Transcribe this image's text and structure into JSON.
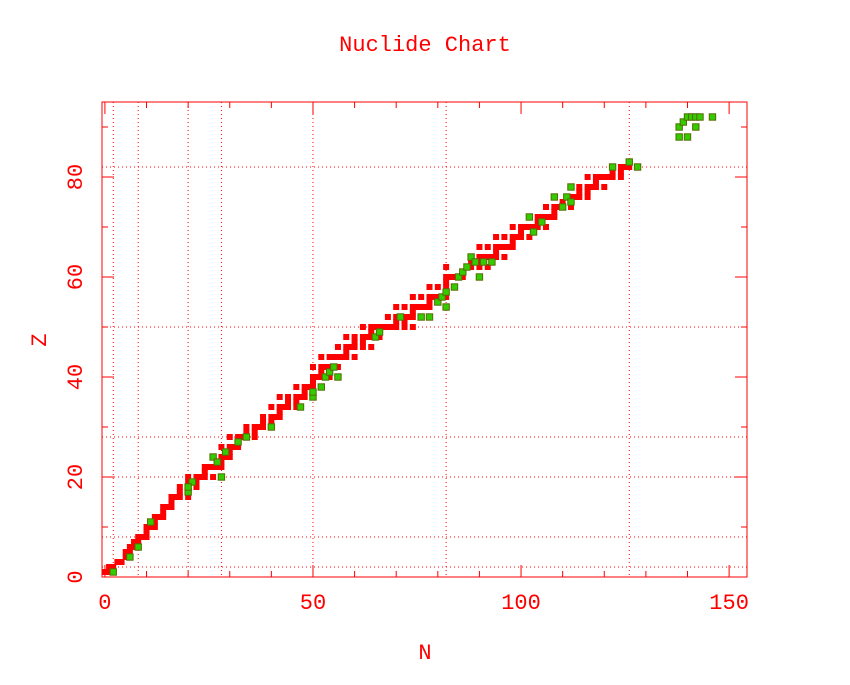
{
  "chart_data": {
    "type": "scatter",
    "title": "Nuclide Chart",
    "x_label": "N",
    "y_label": "Z",
    "xlim": [
      -0.7,
      154.3
    ],
    "ylim": [
      0,
      95
    ],
    "xticks": [
      0,
      50,
      100,
      150
    ],
    "yticks": [
      0,
      20,
      40,
      60,
      80
    ],
    "xminorticks": [
      10,
      20,
      30,
      40,
      60,
      70,
      80,
      90,
      110,
      120,
      130,
      140
    ],
    "yminorticks": [
      10,
      30,
      50,
      70,
      90
    ],
    "xgrid": [
      2,
      8,
      20,
      28,
      50,
      82,
      126
    ],
    "ygrid": [
      2,
      8,
      20,
      28,
      50,
      82
    ],
    "axis_color": "#ff0000",
    "series": [
      {
        "color": "#ff0000",
        "x": [
          0,
          1,
          1,
          2,
          3,
          4,
          5,
          5,
          6,
          6,
          7,
          7,
          8,
          8,
          9,
          10,
          10,
          10,
          11,
          12,
          12,
          12,
          13,
          14,
          14,
          14,
          15,
          16,
          16,
          16,
          17,
          18,
          20,
          18,
          20,
          18,
          20,
          22,
          20,
          22,
          20,
          22,
          23,
          24,
          26,
          24,
          24,
          25,
          26,
          27,
          28,
          28,
          26,
          28,
          29,
          30,
          30,
          28,
          30,
          31,
          32,
          32,
          30,
          32,
          33,
          34,
          36,
          34,
          36,
          34,
          36,
          37,
          38,
          40,
          38,
          40,
          38,
          40,
          41,
          42,
          42,
          40,
          42,
          43,
          44,
          46,
          44,
          46,
          42,
          44,
          46,
          47,
          48,
          50,
          48,
          46,
          48,
          49,
          50,
          50,
          50,
          51,
          52,
          54,
          52,
          50,
          52,
          53,
          54,
          55,
          56,
          52,
          54,
          55,
          56,
          57,
          58,
          60,
          58,
          56,
          58,
          59,
          60,
          62,
          64,
          60,
          62,
          58,
          60,
          62,
          63,
          64,
          66,
          64,
          62,
          64,
          65,
          66,
          67,
          68,
          69,
          70,
          72,
          74,
          70,
          72,
          68,
          70,
          71,
          72,
          73,
          74,
          74,
          70,
          72,
          74,
          75,
          76,
          77,
          78,
          78,
          74,
          76,
          78,
          79,
          80,
          81,
          82,
          82,
          78,
          80,
          82,
          82,
          82,
          83,
          84,
          85,
          86,
          82,
          87,
          88,
          90,
          92,
          88,
          90,
          90,
          91,
          92,
          93,
          94,
          96,
          94,
          90,
          92,
          94,
          95,
          96,
          97,
          98,
          98,
          94,
          96,
          98,
          99,
          100,
          102,
          100,
          98,
          100,
          101,
          102,
          103,
          104,
          106,
          104,
          104,
          105,
          106,
          107,
          108,
          108,
          106,
          108,
          109,
          110,
          112,
          110,
          108,
          111,
          112,
          113,
          114,
          116,
          114,
          116,
          114,
          116,
          117,
          118,
          120,
          118,
          116,
          118,
          119,
          120,
          121,
          122,
          124,
          122,
          124,
          122,
          124,
          125,
          126
        ],
        "values": [
          1,
          1,
          2,
          2,
          3,
          3,
          4,
          5,
          5,
          6,
          6,
          7,
          7,
          8,
          8,
          8,
          9,
          10,
          10,
          10,
          11,
          12,
          12,
          12,
          13,
          14,
          14,
          14,
          15,
          16,
          16,
          16,
          16,
          17,
          17,
          18,
          18,
          18,
          19,
          19,
          20,
          20,
          20,
          20,
          20,
          21,
          22,
          22,
          22,
          22,
          22,
          23,
          24,
          24,
          24,
          24,
          25,
          26,
          26,
          26,
          26,
          27,
          28,
          28,
          28,
          28,
          28,
          29,
          29,
          30,
          30,
          30,
          30,
          30,
          31,
          31,
          32,
          32,
          32,
          32,
          33,
          34,
          34,
          34,
          34,
          34,
          35,
          35,
          36,
          36,
          36,
          36,
          36,
          36,
          37,
          38,
          38,
          38,
          38,
          39,
          40,
          40,
          40,
          40,
          41,
          42,
          42,
          42,
          42,
          42,
          42,
          44,
          44,
          44,
          44,
          44,
          44,
          44,
          45,
          46,
          46,
          46,
          46,
          46,
          46,
          47,
          47,
          48,
          48,
          48,
          48,
          48,
          48,
          49,
          50,
          50,
          50,
          50,
          50,
          50,
          50,
          50,
          50,
          50,
          51,
          51,
          52,
          52,
          52,
          52,
          52,
          52,
          53,
          54,
          54,
          54,
          54,
          54,
          54,
          54,
          55,
          56,
          56,
          56,
          56,
          56,
          56,
          56,
          57,
          58,
          58,
          58,
          59,
          60,
          60,
          60,
          60,
          60,
          62,
          62,
          62,
          62,
          62,
          63,
          63,
          64,
          64,
          64,
          64,
          64,
          64,
          65,
          66,
          66,
          66,
          66,
          66,
          66,
          66,
          67,
          68,
          68,
          68,
          68,
          68,
          68,
          69,
          70,
          70,
          70,
          70,
          70,
          70,
          70,
          71,
          72,
          72,
          72,
          72,
          72,
          73,
          74,
          74,
          74,
          74,
          74,
          75,
          76,
          76,
          76,
          76,
          76,
          76,
          77,
          77,
          78,
          78,
          78,
          78,
          78,
          79,
          80,
          80,
          80,
          80,
          80,
          80,
          80,
          81,
          81,
          82,
          82,
          82,
          82
        ]
      },
      {
        "color": "#33cc00",
        "x": [
          2,
          6,
          8,
          11,
          20,
          21,
          20,
          28,
          26,
          27,
          29,
          32,
          34,
          40,
          47,
          50,
          50,
          52,
          53,
          56,
          54,
          55,
          65,
          66,
          71,
          76,
          78,
          80,
          82,
          81,
          82,
          84,
          85,
          86,
          87,
          88,
          89,
          90,
          91,
          93,
          102,
          103,
          105,
          108,
          110,
          111,
          112,
          112,
          122,
          126,
          128,
          138,
          138,
          140,
          139,
          140,
          141,
          142,
          142,
          143,
          146
        ],
        "values": [
          1,
          4,
          6,
          11,
          17,
          19,
          18,
          20,
          24,
          23,
          25,
          27,
          28,
          30,
          34,
          36,
          37,
          38,
          40,
          40,
          41,
          42,
          48,
          49,
          52,
          52,
          52,
          55,
          54,
          56,
          57,
          58,
          60,
          61,
          62,
          64,
          63,
          60,
          63,
          63,
          72,
          69,
          71,
          76,
          74,
          76,
          78,
          75,
          82,
          83,
          82,
          88,
          90,
          88,
          91,
          92,
          92,
          90,
          92,
          92,
          92
        ]
      }
    ]
  }
}
